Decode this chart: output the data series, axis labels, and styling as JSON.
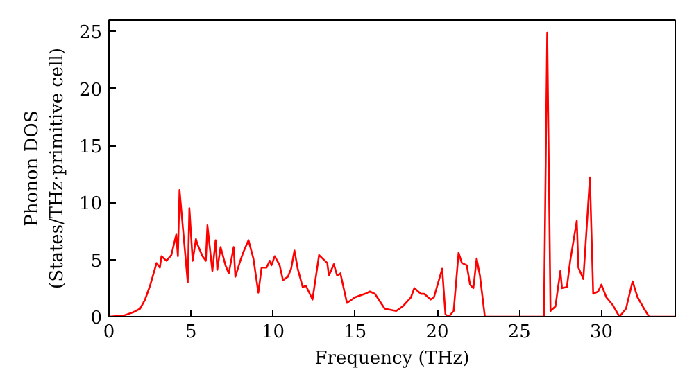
{
  "chart_data": {
    "type": "line",
    "xlabel": "Frequency (THz)",
    "ylabel": "Phonon DOS\n(States/THz·primitive cell)",
    "xlim": [
      0,
      34.5
    ],
    "ylim": [
      0,
      26
    ],
    "xticks": [
      0,
      5,
      10,
      15,
      20,
      25,
      30
    ],
    "yticks": [
      0,
      5,
      10,
      15,
      20,
      25
    ],
    "grid": false,
    "series": [
      {
        "color": "#ff0000",
        "x": [
          0,
          0.9,
          1.5,
          1.9,
          2.2,
          2.5,
          2.9,
          3.1,
          3.2,
          3.5,
          3.8,
          4.1,
          4.2,
          4.3,
          4.8,
          4.9,
          5.1,
          5.3,
          5.4,
          5.7,
          5.9,
          6.0,
          6.3,
          6.5,
          6.6,
          6.8,
          7.1,
          7.3,
          7.6,
          7.7,
          8.0,
          8.2,
          8.5,
          8.8,
          9.1,
          9.3,
          9.6,
          9.8,
          9.9,
          10.1,
          10.4,
          10.6,
          10.9,
          11.1,
          11.3,
          11.5,
          11.8,
          12.0,
          12.4,
          12.8,
          13.3,
          13.4,
          13.7,
          13.9,
          14.1,
          14.5,
          15.0,
          15.6,
          15.9,
          16.2,
          16.8,
          17.5,
          17.9,
          18.4,
          18.6,
          19.0,
          19.2,
          19.6,
          19.8,
          20.2,
          20.3,
          20.5,
          20.7,
          21.0,
          21.3,
          21.5,
          21.8,
          22.0,
          22.2,
          22.4,
          22.6,
          22.9,
          26.5,
          26.7,
          26.9,
          27.2,
          27.5,
          27.6,
          27.9,
          28.1,
          28.5,
          28.6,
          28.9,
          29.3,
          29.5,
          29.8,
          30.0,
          30.3,
          30.7,
          31.1,
          31.5,
          31.9,
          32.2,
          32.6,
          32.9,
          34.5
        ],
        "values": [
          0,
          0.1,
          0.4,
          0.7,
          1.5,
          2.7,
          4.7,
          4.3,
          5.3,
          4.9,
          5.4,
          7.2,
          5.3,
          11.1,
          3.0,
          9.5,
          4.9,
          6.8,
          6.3,
          5.3,
          4.9,
          8.0,
          4.0,
          6.7,
          4.1,
          6.1,
          4.5,
          3.8,
          6.1,
          3.5,
          4.9,
          5.7,
          6.7,
          5.1,
          2.1,
          4.3,
          4.3,
          4.9,
          4.5,
          5.3,
          4.5,
          3.2,
          3.5,
          4.2,
          5.8,
          4.2,
          2.6,
          2.7,
          1.5,
          5.4,
          4.7,
          3.6,
          4.6,
          3.6,
          3.8,
          1.2,
          1.7,
          2.0,
          2.2,
          2.0,
          0.7,
          0.5,
          0.9,
          1.7,
          2.5,
          2.0,
          2.0,
          1.5,
          1.7,
          3.7,
          4.2,
          0.2,
          0,
          0.5,
          5.6,
          4.7,
          4.5,
          2.8,
          2.5,
          5.1,
          3.6,
          0,
          0,
          24.9,
          0.5,
          0.9,
          4.0,
          2.5,
          2.6,
          4.9,
          8.4,
          4.3,
          3.3,
          12.2,
          2.0,
          2.2,
          2.8,
          1.7,
          1.0,
          0,
          0.7,
          3.1,
          1.7,
          0.7,
          0,
          0
        ]
      }
    ]
  }
}
